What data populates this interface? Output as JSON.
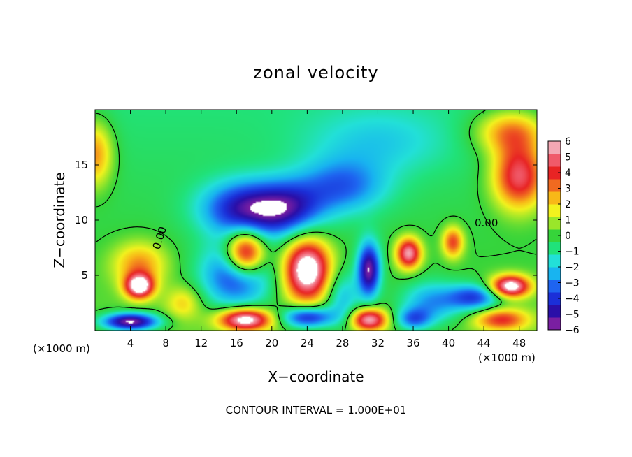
{
  "chart_data": {
    "type": "heatmap",
    "title": "zonal velocity",
    "xlabel": "X−coordinate",
    "ylabel": "Z−coordinate",
    "x_unit": "(×1000 m)",
    "y_unit": "(×1000 m)",
    "xlim": [
      0,
      50
    ],
    "ylim": [
      0,
      20
    ],
    "x_ticks": [
      4,
      8,
      12,
      16,
      20,
      24,
      28,
      32,
      36,
      40,
      44,
      48
    ],
    "y_ticks": [
      5,
      10,
      15
    ],
    "colorbar": {
      "min": -6,
      "max": 6,
      "ticks": [
        6,
        5,
        4,
        3,
        2,
        1,
        0,
        -1,
        -2,
        -3,
        -4,
        -5,
        -6
      ],
      "tick_labels": [
        "6",
        "5",
        "4",
        "3",
        "2",
        "1",
        "0",
        "−1",
        "−2",
        "−3",
        "−4",
        "−5",
        "−6"
      ],
      "colors": [
        "#7a1fa2",
        "#2a0fa8",
        "#1b2fd8",
        "#1e64f0",
        "#18b4f0",
        "#22e0d8",
        "#20e27a",
        "#36d43a",
        "#9ae62a",
        "#f2f21e",
        "#f8b818",
        "#f06a20",
        "#e82424",
        "#f05a6a",
        "#f4a8b4"
      ]
    },
    "contour_labels": [
      "0.00",
      "0.00"
    ],
    "footer": "CONTOUR INTERVAL = 1.000E+01",
    "field_features": [
      {
        "x": 0,
        "z": 16,
        "value": 3.5,
        "sx": 2,
        "sz": 3
      },
      {
        "x": 5,
        "z": 4,
        "value": 6.8,
        "sx": 1.6,
        "sz": 1.1
      },
      {
        "x": 5,
        "z": 6,
        "value": 3,
        "sx": 3,
        "sz": 2
      },
      {
        "x": 4,
        "z": 0.8,
        "value": -6.5,
        "sx": 3.2,
        "sz": 0.8
      },
      {
        "x": 10,
        "z": 2.5,
        "value": 2,
        "sx": 2,
        "sz": 1.5
      },
      {
        "x": 17,
        "z": 7,
        "value": 7,
        "sx": 2.2,
        "sz": 2
      },
      {
        "x": 16,
        "z": 5,
        "value": -4.5,
        "sx": 4,
        "sz": 3
      },
      {
        "x": 17,
        "z": 1,
        "value": 7,
        "sx": 3,
        "sz": 1
      },
      {
        "x": 17,
        "z": 11,
        "value": -4.8,
        "sx": 5,
        "sz": 2.5
      },
      {
        "x": 22,
        "z": 11,
        "value": -3.5,
        "sx": 4,
        "sz": 2.5
      },
      {
        "x": 28,
        "z": 13,
        "value": -3,
        "sx": 5,
        "sz": 2.5
      },
      {
        "x": 24,
        "z": 5.5,
        "value": 7.5,
        "sx": 2.6,
        "sz": 2.8
      },
      {
        "x": 24,
        "z": 1.2,
        "value": -5,
        "sx": 3,
        "sz": 1
      },
      {
        "x": 28,
        "z": 3,
        "value": -2.5,
        "sx": 2,
        "sz": 2.5
      },
      {
        "x": 31,
        "z": 5.5,
        "value": -6,
        "sx": 1.3,
        "sz": 2.5
      },
      {
        "x": 31,
        "z": 1,
        "value": 6,
        "sx": 2,
        "sz": 1
      },
      {
        "x": 35.5,
        "z": 7,
        "value": 6,
        "sx": 1.4,
        "sz": 1.4
      },
      {
        "x": 36,
        "z": 1,
        "value": -3,
        "sx": 2,
        "sz": 1
      },
      {
        "x": 40.5,
        "z": 8,
        "value": 4,
        "sx": 1.2,
        "sz": 1.4
      },
      {
        "x": 38,
        "z": 2.5,
        "value": -3,
        "sx": 3.5,
        "sz": 2
      },
      {
        "x": 43,
        "z": 3,
        "value": -4,
        "sx": 3,
        "sz": 1.2
      },
      {
        "x": 47,
        "z": 4,
        "value": 7,
        "sx": 2.2,
        "sz": 1
      },
      {
        "x": 46,
        "z": 1,
        "value": 4,
        "sx": 3,
        "sz": 1
      },
      {
        "x": 48,
        "z": 14,
        "value": 5.5,
        "sx": 3,
        "sz": 3
      },
      {
        "x": 47,
        "z": 18,
        "value": 3.5,
        "sx": 4,
        "sz": 2
      },
      {
        "x": 32,
        "z": 17,
        "value": -1.5,
        "sx": 8,
        "sz": 3
      }
    ],
    "field_background": {
      "z_top": 20,
      "top_value": -0.8,
      "base_value": 0.4
    }
  }
}
